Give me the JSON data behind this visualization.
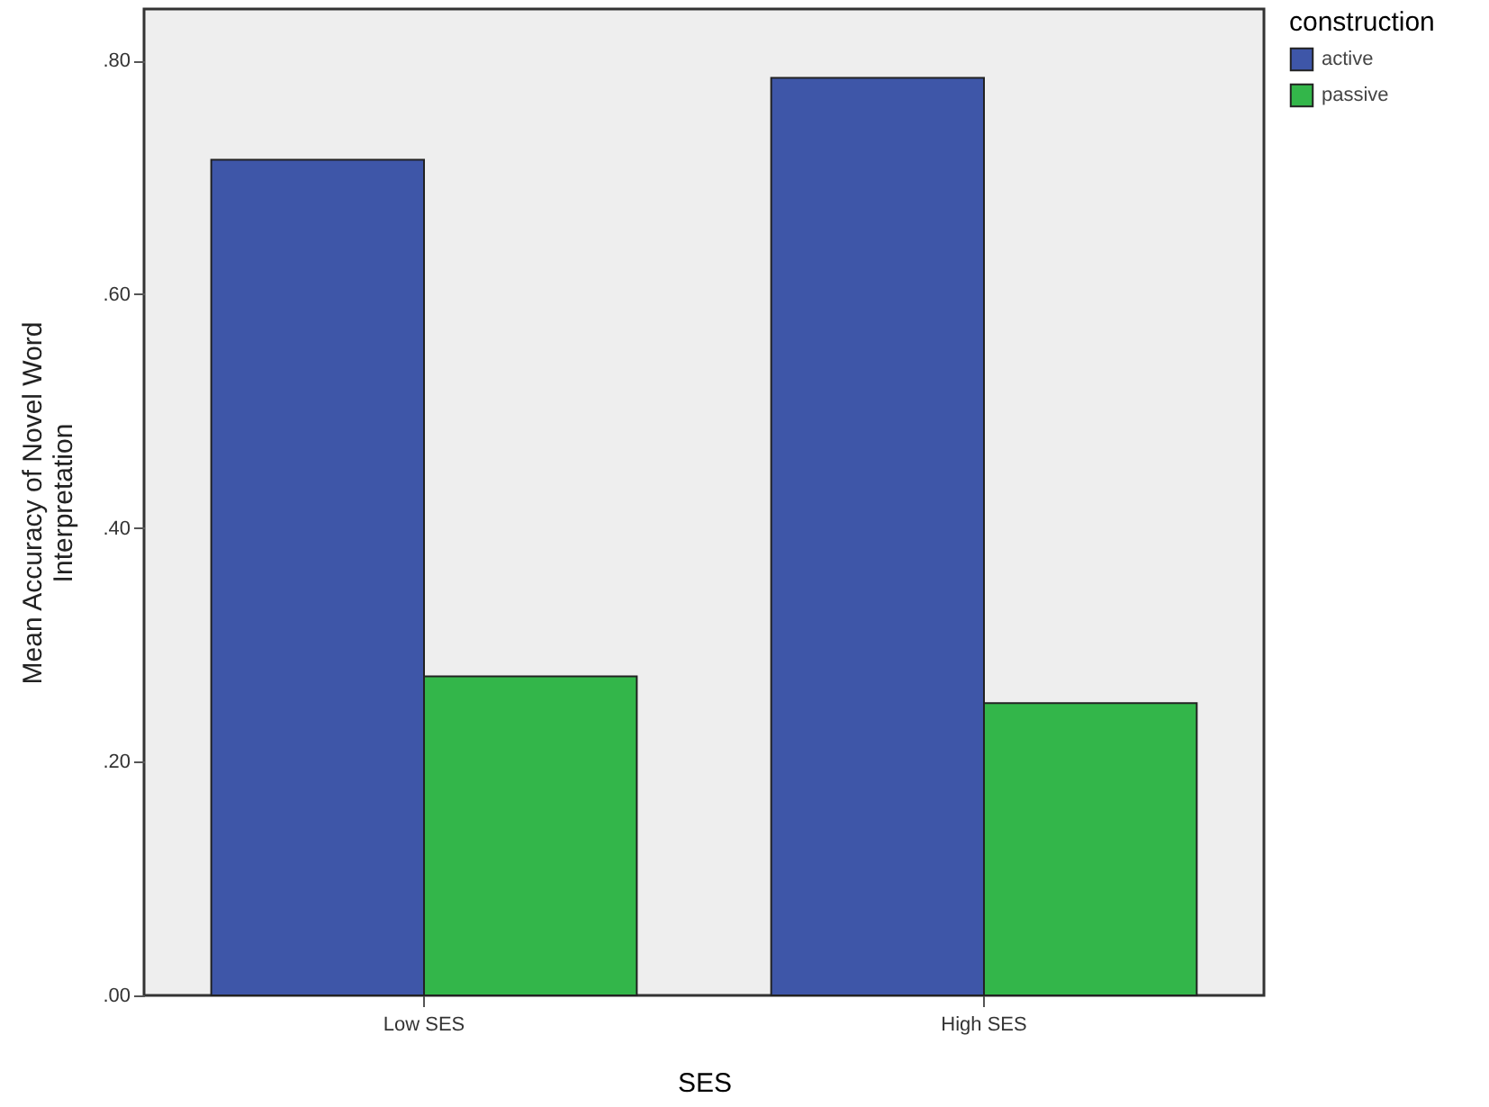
{
  "chart_data": {
    "type": "bar",
    "xlabel": "SES",
    "ylabel": "Mean Accuracy of Novel Word\nInterpretation",
    "legend_title": "construction",
    "legend": "top right",
    "grid": false,
    "categories": [
      "Low SES",
      "High SES"
    ],
    "series": [
      {
        "name": "active",
        "color": "#3e56a8",
        "values": [
          0.715,
          0.785
        ]
      },
      {
        "name": "passive",
        "color": "#33b64a",
        "values": [
          0.273,
          0.25
        ]
      }
    ],
    "ylim": [
      0,
      0.844
    ],
    "yticks": [
      {
        "value": 0,
        "label": ".00"
      },
      {
        "value": 0.2,
        "label": ".20"
      },
      {
        "value": 0.4,
        "label": ".40"
      },
      {
        "value": 0.6,
        "label": ".60"
      },
      {
        "value": 0.8,
        "label": ".80"
      }
    ]
  }
}
